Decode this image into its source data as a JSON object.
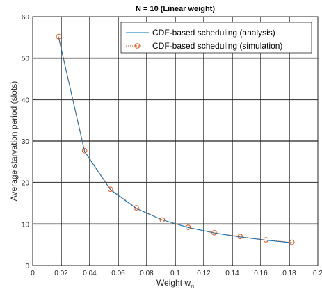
{
  "chart_data": {
    "type": "line",
    "title": "N = 10 (Linear weight)",
    "xlabel": "Weight w",
    "xlabel_subscript": "n",
    "ylabel": "Average starvation period (slots)",
    "xlim": [
      0,
      0.2
    ],
    "ylim": [
      0,
      60
    ],
    "xticks": [
      0,
      0.02,
      0.04,
      0.06,
      0.08,
      0.1,
      0.12,
      0.14,
      0.16,
      0.18,
      0.2
    ],
    "yticks": [
      0,
      10,
      20,
      30,
      40,
      50,
      60
    ],
    "xtick_labels": [
      "0",
      "0.02",
      "0.04",
      "0.06",
      "0.08",
      "0.1",
      "0.12",
      "0.14",
      "0.16",
      "0.18",
      "0.2"
    ],
    "ytick_labels": [
      "0",
      "10",
      "20",
      "30",
      "40",
      "50",
      "60"
    ],
    "grid": true,
    "legend_position": "top-right",
    "series": [
      {
        "name": "CDF-based scheduling (analysis)",
        "style": "solid-line",
        "color": "#0072BD",
        "x": [
          0.0182,
          0.0364,
          0.0545,
          0.0727,
          0.0909,
          0.1091,
          0.1273,
          0.1455,
          0.1636,
          0.1818
        ],
        "y": [
          55.0,
          27.5,
          18.3,
          13.75,
          11.0,
          9.17,
          7.86,
          6.88,
          6.11,
          5.5
        ]
      },
      {
        "name": "CDF-based scheduling (simulation)",
        "style": "dotted-circle-markers",
        "color": "#D95319",
        "x": [
          0.0182,
          0.0364,
          0.0545,
          0.0727,
          0.0909,
          0.1091,
          0.1273,
          0.1455,
          0.1636,
          0.1818
        ],
        "y": [
          55.2,
          27.7,
          18.4,
          13.9,
          11.0,
          9.2,
          7.9,
          7.0,
          6.2,
          5.6
        ]
      }
    ]
  }
}
